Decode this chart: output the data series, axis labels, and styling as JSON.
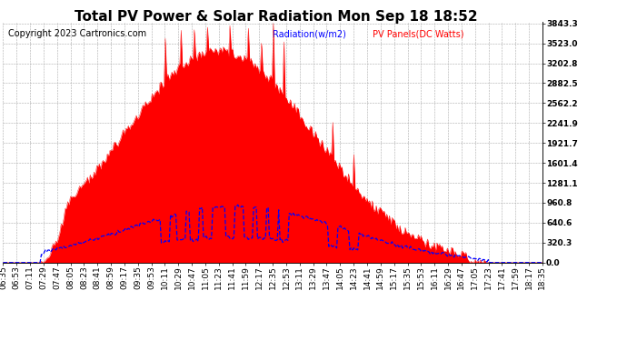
{
  "title": "Total PV Power & Solar Radiation Mon Sep 18 18:52",
  "copyright": "Copyright 2023 Cartronics.com",
  "legend_radiation": "Radiation(w/m2)",
  "legend_pv": "PV Panels(DC Watts)",
  "legend_radiation_color": "blue",
  "legend_pv_color": "red",
  "background_color": "#ffffff",
  "grid_color": "#aaaaaa",
  "pv_fill_color": "red",
  "pv_line_color": "red",
  "radiation_line_color": "blue",
  "ymin": 0.0,
  "ymax": 3843.3,
  "yticks": [
    0.0,
    320.3,
    640.6,
    960.8,
    1281.1,
    1601.4,
    1921.7,
    2241.9,
    2562.2,
    2882.5,
    3202.8,
    3523.0,
    3843.3
  ],
  "radiation_max_scaled": 960.0,
  "title_fontsize": 11,
  "copyright_fontsize": 7,
  "tick_fontsize": 6.5
}
